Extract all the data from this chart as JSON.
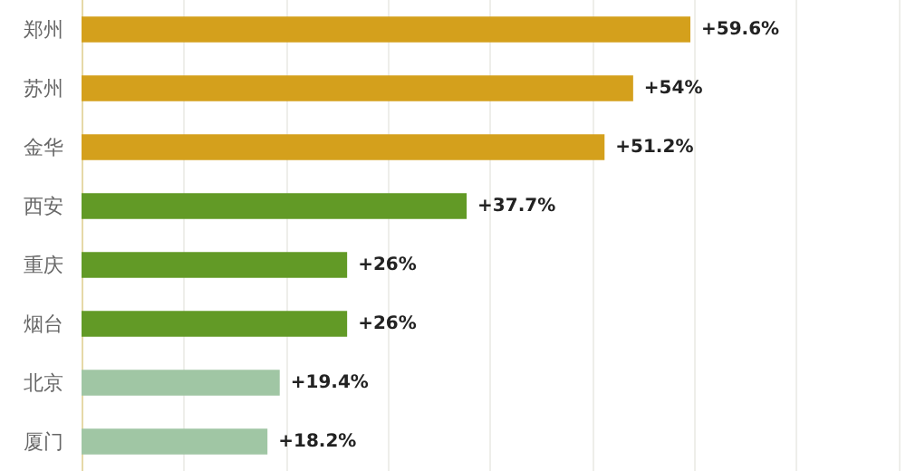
{
  "chart_data": {
    "type": "bar",
    "orientation": "horizontal",
    "categories": [
      "郑州",
      "苏州",
      "金华",
      "西安",
      "重庆",
      "烟台",
      "北京",
      "厦门"
    ],
    "values": [
      59.6,
      54,
      51.2,
      37.7,
      26,
      26,
      19.4,
      18.2
    ],
    "value_labels": [
      "+59.6%",
      "+54%",
      "+51.2%",
      "+37.7%",
      "+26%",
      "+26%",
      "+19.4%",
      "+18.2%"
    ],
    "colors": [
      "#d4a01c",
      "#d4a01c",
      "#d4a01c",
      "#629a26",
      "#629a26",
      "#629a26",
      "#a0c6a4",
      "#a0c6a4"
    ],
    "xlim": [
      0,
      80
    ],
    "xticks": [
      {
        "value": 0,
        "label": null
      },
      {
        "value": 10,
        "label": null
      },
      {
        "value": 20,
        "label": null
      },
      {
        "value": 30,
        "label": null
      },
      {
        "value": 40,
        "label": null
      },
      {
        "value": 50,
        "label": null
      },
      {
        "value": 60,
        "label": null
      },
      {
        "value": 70,
        "label": null
      },
      {
        "value": 80,
        "label": null
      }
    ],
    "tick_labels": "y",
    "grid": "x"
  }
}
